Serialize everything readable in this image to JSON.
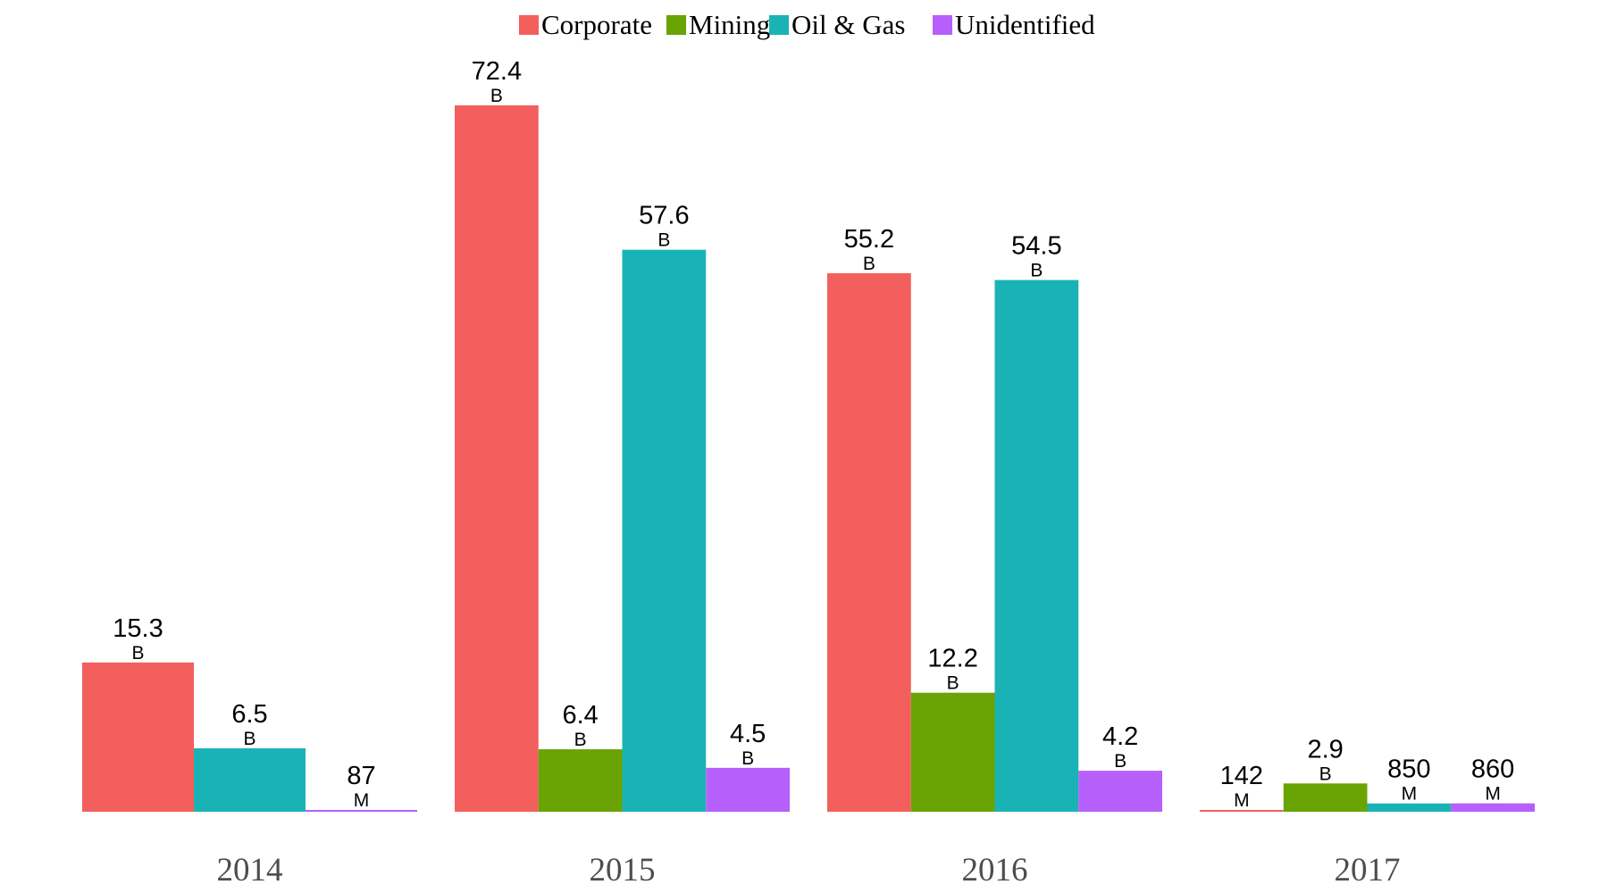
{
  "chart_data": {
    "type": "bar",
    "categories": [
      "2014",
      "2015",
      "2016",
      "2017"
    ],
    "legend_position": "top",
    "grid": false,
    "ylim": [
      0,
      80
    ],
    "series": [
      {
        "name": "Corporate",
        "color": "#F25F5C",
        "values": [
          15.3,
          72.4,
          55.2,
          0.142
        ],
        "labels": [
          [
            "15.3",
            "B"
          ],
          [
            "72.4",
            "B"
          ],
          [
            "55.2",
            "B"
          ],
          [
            "142",
            "M"
          ]
        ]
      },
      {
        "name": "Mining",
        "color": "#6AA304",
        "values": [
          null,
          6.4,
          12.2,
          2.9
        ],
        "labels": [
          null,
          [
            "6.4",
            "B"
          ],
          [
            "12.2",
            "B"
          ],
          [
            "2.9",
            "B"
          ]
        ]
      },
      {
        "name": "Oil & Gas",
        "color": "#1AB3B5",
        "values": [
          6.5,
          57.6,
          54.5,
          0.85
        ],
        "labels": [
          [
            "6.5",
            "B"
          ],
          [
            "57.6",
            "B"
          ],
          [
            "54.5",
            "B"
          ],
          [
            "850",
            "M"
          ]
        ]
      },
      {
        "name": "Unidentified",
        "color": "#B65FFB",
        "values": [
          0.087,
          4.5,
          4.2,
          0.86
        ],
        "labels": [
          [
            "87",
            "M"
          ],
          [
            "4.5",
            "B"
          ],
          [
            "4.2",
            "B"
          ],
          [
            "860",
            "M"
          ]
        ]
      }
    ]
  }
}
